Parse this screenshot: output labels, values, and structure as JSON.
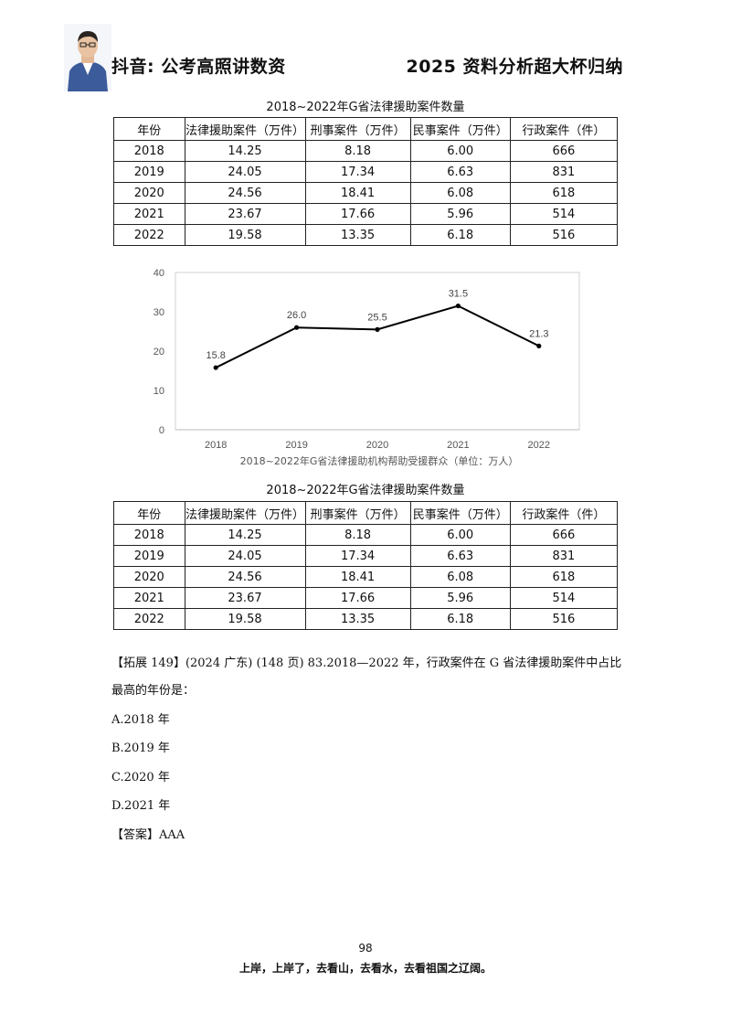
{
  "header": {
    "left": "抖音: 公考高照讲数资",
    "right": "2025 资料分析超大杯归纳"
  },
  "table1": {
    "title": "2018~2022年G省法律援助案件数量",
    "headers": [
      "年份",
      "法律援助案件（万件）",
      "刑事案件（万件）",
      "民事案件（万件）",
      "行政案件（件）"
    ],
    "rows": [
      [
        "2018",
        "14.25",
        "8.18",
        "6.00",
        "666"
      ],
      [
        "2019",
        "24.05",
        "17.34",
        "6.63",
        "831"
      ],
      [
        "2020",
        "24.56",
        "18.41",
        "6.08",
        "618"
      ],
      [
        "2021",
        "23.67",
        "17.66",
        "5.96",
        "514"
      ],
      [
        "2022",
        "19.58",
        "13.35",
        "6.18",
        "516"
      ]
    ]
  },
  "chart_data": {
    "type": "line",
    "title": "",
    "xlabel": "2018~2022年G省法律援助机构帮助受援群众（单位：万人）",
    "ylabel": "",
    "categories": [
      "2018",
      "2019",
      "2020",
      "2021",
      "2022"
    ],
    "values": [
      15.8,
      26.0,
      25.5,
      31.5,
      21.3
    ],
    "data_labels": [
      "15.8",
      "26.0",
      "25.5",
      "31.5",
      "21.3"
    ],
    "y_ticks": [
      "0",
      "10",
      "20",
      "30",
      "40"
    ],
    "ylim": [
      0,
      40
    ],
    "grid": false,
    "line_color": "#000000"
  },
  "table2": {
    "title": "2018~2022年G省法律援助案件数量",
    "headers": [
      "年份",
      "法律援助案件（万件）",
      "刑事案件（万件）",
      "民事案件（万件）",
      "行政案件（件）"
    ],
    "rows": [
      [
        "2018",
        "14.25",
        "8.18",
        "6.00",
        "666"
      ],
      [
        "2019",
        "24.05",
        "17.34",
        "6.63",
        "831"
      ],
      [
        "2020",
        "24.56",
        "18.41",
        "6.08",
        "618"
      ],
      [
        "2021",
        "23.67",
        "17.66",
        "5.96",
        "514"
      ],
      [
        "2022",
        "19.58",
        "13.35",
        "6.18",
        "516"
      ]
    ]
  },
  "question": {
    "line1": "【拓展 149】(2024 广东) (148 页) 83.2018—2022 年，行政案件在 G 省法律援助案件中占比",
    "line2": "最高的年份是：",
    "options": [
      "A.2018 年",
      "B.2019 年",
      "C.2020 年",
      "D.2021 年"
    ],
    "answer": "【答案】AAA"
  },
  "footer": {
    "page": "98",
    "motto": "上岸，上岸了，去看山，去看水，去看祖国之辽阔。"
  }
}
